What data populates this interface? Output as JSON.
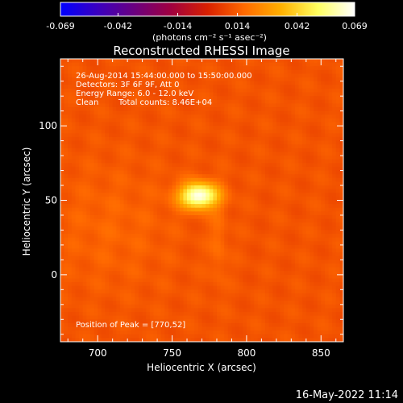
{
  "chart_data": {
    "type": "heatmap",
    "title": "Reconstructed RHESSI Image",
    "colorbar": {
      "min": -0.069,
      "max": 0.069,
      "ticks": [
        "-0.069",
        "-0.042",
        "-0.014",
        "0.014",
        "0.042",
        "0.069"
      ],
      "tick_values": [
        -0.069,
        -0.042,
        -0.014,
        0.014,
        0.042,
        0.069
      ],
      "unit_label": "(photons cm⁻² s⁻¹ asec⁻²)",
      "colormap": [
        "#0000ff",
        "#3a00c0",
        "#6a0080",
        "#a00040",
        "#d82000",
        "#ff6a00",
        "#ffb000",
        "#ffff60",
        "#ffffff"
      ]
    },
    "info": {
      "time_range": "26-Aug-2014 15:44:00.000 to 15:50:00.000",
      "detectors": "Detectors: 3F 6F 9F, Att 0",
      "energy": "Energy Range: 6.0 - 12.0 keV",
      "clean_label": "Clean",
      "total_counts": "Total counts: 8.46E+04"
    },
    "peak_label": "Position of Peak = [770,52]",
    "peak": {
      "x": 770,
      "y": 52
    },
    "xlabel": "Heliocentric X (arcsec)",
    "ylabel": "Heliocentric Y (arcsec)",
    "xlim": [
      675,
      865
    ],
    "ylim": [
      -45,
      145
    ],
    "x_ticks": [
      700,
      750,
      800,
      850
    ],
    "y_ticks": [
      0,
      50,
      100
    ],
    "background_level": 0.012,
    "sources": [
      {
        "x": 768,
        "y": 53,
        "sigma_x": 9,
        "sigma_y": 6,
        "amplitude": 0.057
      },
      {
        "x": 781,
        "y": 22,
        "sigma_x": 4,
        "sigma_y": 20,
        "amplitude": 0.006
      },
      {
        "x": 708,
        "y": 32,
        "sigma_x": 30,
        "sigma_y": 30,
        "amplitude": 0.004
      }
    ]
  },
  "footer_timestamp": "16-May-2022 11:14"
}
